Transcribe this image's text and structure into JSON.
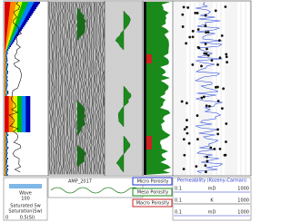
{
  "header": {
    "track1": [
      "Wave",
      "100",
      "Saturated Sw",
      "Saturation(Sw)",
      "0",
      "0.5(SI)"
    ],
    "track2": "AMP_2017",
    "track4": [
      "Micro Porosity",
      "Meso Porosity",
      "Macro Porosity"
    ],
    "track5": {
      "title": "Permeability (Kozeny-Carman)",
      "scales": [
        [
          "0.1",
          "mD",
          "1000"
        ],
        [
          "0.1",
          "K",
          "1000"
        ],
        [
          "0.1",
          "mD",
          "1000"
        ]
      ]
    }
  }
}
